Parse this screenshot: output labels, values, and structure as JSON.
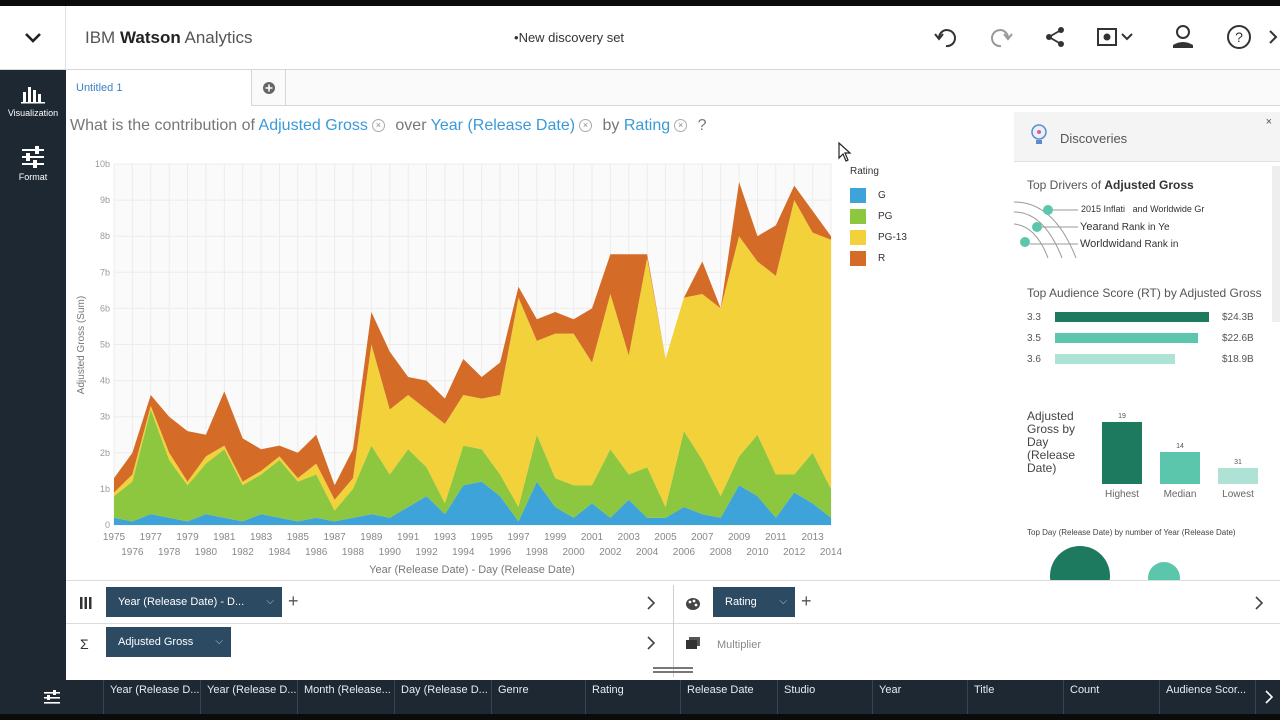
{
  "header": {
    "brand_prefix": "IBM ",
    "brand_bold": "Watson",
    "brand_suffix": " Analytics",
    "doc_title": "New discovery set",
    "icons": [
      "chevron-down-icon",
      "undo-icon",
      "redo-icon",
      "share-icon",
      "screenshot-icon",
      "user-icon",
      "help-icon",
      "chevron-right-icon"
    ]
  },
  "rail": {
    "items": [
      {
        "label": "Visualization",
        "icon": "visualization-icon"
      },
      {
        "label": "Format",
        "icon": "format-icon"
      }
    ]
  },
  "tabs": [
    {
      "label": "Untitled 1"
    }
  ],
  "question": {
    "prefix": "What is the contribution of",
    "measure": "Adjusted Gross",
    "over": "over",
    "dimension": "Year (Release Date)",
    "by": "by",
    "group": "Rating",
    "suffix": "?"
  },
  "chart_data": {
    "type": "area",
    "stacked": true,
    "title": "",
    "xlabel": "Year (Release Date) - Day (Release Date)",
    "ylabel": "Adjusted Gross (Sum)",
    "ylim": [
      0,
      10
    ],
    "y_ticks": [
      "0",
      "1b",
      "2b",
      "3b",
      "4b",
      "5b",
      "6b",
      "7b",
      "8b",
      "9b",
      "10b"
    ],
    "x": [
      1975,
      1976,
      1977,
      1978,
      1979,
      1980,
      1981,
      1982,
      1983,
      1984,
      1985,
      1986,
      1987,
      1988,
      1989,
      1990,
      1991,
      1992,
      1993,
      1994,
      1995,
      1996,
      1997,
      1998,
      1999,
      2000,
      2001,
      2002,
      2003,
      2004,
      2005,
      2006,
      2007,
      2008,
      2009,
      2010,
      2011,
      2012,
      2013,
      2014
    ],
    "x_ticks_top": [
      "1975",
      "1977",
      "1979",
      "1981",
      "1983",
      "1985",
      "1987",
      "1989",
      "1991",
      "1993",
      "1995",
      "1997",
      "1999",
      "2001",
      "2003",
      "2005",
      "2007",
      "2009",
      "2011",
      "2013"
    ],
    "x_ticks_bottom": [
      "1976",
      "1978",
      "1980",
      "1982",
      "1984",
      "1986",
      "1988",
      "1990",
      "1992",
      "1994",
      "1996",
      "1998",
      "2000",
      "2002",
      "2004",
      "2006",
      "2008",
      "2010",
      "2012",
      "2014"
    ],
    "legend_title": "Rating",
    "legend_position": "right",
    "grid": true,
    "series": [
      {
        "name": "G",
        "color": "#3ea3d8",
        "values": [
          0.2,
          0.1,
          0.3,
          0.2,
          0.1,
          0.3,
          0.2,
          0.1,
          0.3,
          0.2,
          0.1,
          0.2,
          0.1,
          0.2,
          0.3,
          0.2,
          0.5,
          0.8,
          0.3,
          1.1,
          1.2,
          0.8,
          0.1,
          1.2,
          0.5,
          0.2,
          0.6,
          0.2,
          0.7,
          0.2,
          0.2,
          0.5,
          0.3,
          0.2,
          1.1,
          0.8,
          0.2,
          0.9,
          0.6,
          0.2
        ]
      },
      {
        "name": "PG",
        "color": "#8dc63f",
        "values": [
          0.6,
          1.1,
          2.9,
          1.6,
          1.0,
          1.4,
          1.9,
          1.0,
          1.1,
          1.6,
          1.1,
          1.2,
          0.3,
          0.8,
          1.9,
          1.2,
          1.6,
          0.8,
          0.3,
          1.1,
          0.9,
          0.6,
          0.4,
          1.3,
          0.8,
          0.9,
          0.5,
          1.9,
          0.7,
          1.4,
          0.3,
          2.1,
          1.5,
          0.6,
          0.8,
          1.7,
          1.2,
          0.5,
          1.4,
          0.8
        ]
      },
      {
        "name": "PG-13",
        "color": "#f2d13a",
        "values": [
          0.1,
          0.2,
          0.1,
          0.2,
          0.1,
          0.2,
          0.1,
          0.1,
          0.1,
          0.1,
          0.1,
          0.3,
          0.3,
          0.3,
          2.8,
          1.8,
          1.5,
          1.6,
          2.2,
          1.4,
          1.4,
          2.2,
          5.8,
          2.6,
          4.0,
          4.2,
          3.4,
          4.3,
          3.3,
          5.8,
          4.1,
          3.7,
          4.6,
          5.2,
          6.1,
          4.8,
          5.5,
          7.6,
          6.1,
          6.9
        ]
      },
      {
        "name": "R",
        "color": "#d46c27",
        "values": [
          0.4,
          0.6,
          0.3,
          1.0,
          1.4,
          0.6,
          1.5,
          1.2,
          0.6,
          0.3,
          0.7,
          0.8,
          0.4,
          0.8,
          0.9,
          1.6,
          0.5,
          0.8,
          0.7,
          1.0,
          0.6,
          0.9,
          0.3,
          0.6,
          0.6,
          0.4,
          1.5,
          1.1,
          2.8,
          0.1,
          0.0,
          0.0,
          0.9,
          0.0,
          1.5,
          0.7,
          1.4,
          0.4,
          0.6,
          0.1
        ]
      }
    ]
  },
  "discoveries": {
    "title": "Discoveries",
    "close": "×",
    "drivers": {
      "title_prefix": "Top Drivers of",
      "title_bold": "Adjusted Gross",
      "items": [
        {
          "a": "2015 Inflati",
          "b": "and Worldwide Gr"
        },
        {
          "a": "Year",
          "b": "and Rank in Ye"
        },
        {
          "a": "Worldwid",
          "b": "and Rank in"
        }
      ]
    },
    "audience": {
      "title": "Top Audience Score (RT) by Adjusted Gross",
      "rows": [
        {
          "label": "3.3",
          "value": "$24.3B",
          "fraction": 1.0,
          "color": "#1d7a5e"
        },
        {
          "label": "3.5",
          "value": "$22.6B",
          "fraction": 0.93,
          "color": "#5cc6ad"
        },
        {
          "label": "3.6",
          "value": "$18.9B",
          "fraction": 0.78,
          "color": "#aee2d4"
        }
      ]
    },
    "day": {
      "title": "Adjusted Gross by Day (Release Date)",
      "bars": [
        {
          "label": "Highest",
          "value": "19",
          "fraction": 1.0,
          "color": "#1d7a5e"
        },
        {
          "label": "Median",
          "value": "14",
          "fraction": 0.52,
          "color": "#5cc6ad"
        },
        {
          "label": "Lowest",
          "value": "31",
          "fraction": 0.25,
          "color": "#aee2d4"
        }
      ]
    },
    "topday": {
      "title": "Top Day (Release Date) by number of Year (Release Date)"
    }
  },
  "shelves": {
    "columns_icon": "columns-icon",
    "x_pill": "Year (Release Date) - D...",
    "y_pill": "Adjusted Gross",
    "color_pill": "Rating",
    "multiplier": "Multiplier",
    "sum_symbol": "Σ",
    "add": "+"
  },
  "dataset_columns": [
    "Year (Release D...",
    "Year (Release D...",
    "Month (Release...",
    "Day (Release D...",
    "Genre",
    "Rating",
    "Release Date",
    "Studio",
    "Year",
    "Title",
    "Count",
    "Audience Scor..."
  ]
}
